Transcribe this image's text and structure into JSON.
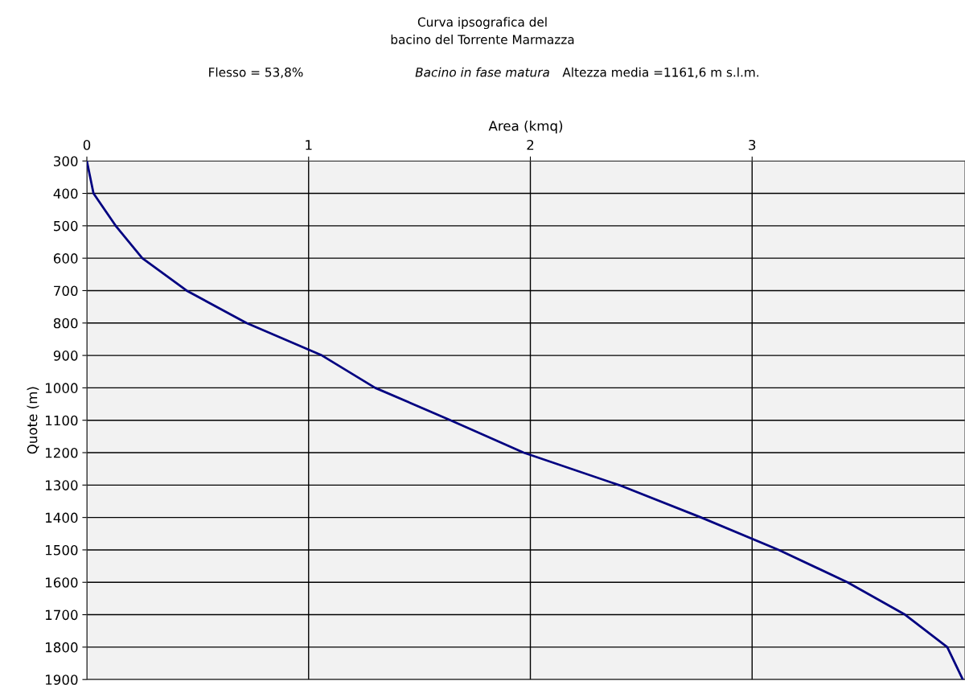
{
  "chart_data": {
    "type": "line",
    "title": "Curva ipsografica del\nbacino del Torrente Marmazza",
    "annotations": [
      "Flesso = 53,8%",
      "Bacino in fase matura",
      "Altezza media =1161,6 m s.l.m."
    ],
    "xlabel": "Area (kmq)",
    "ylabel": "Quote (m)",
    "series": [
      {
        "color": "#000080",
        "x": [
          0,
          0.03,
          0.13,
          0.25,
          0.45,
          0.72,
          1.06,
          1.3,
          1.64,
          1.97,
          2.4,
          2.77,
          3.12,
          3.43,
          3.69,
          3.88,
          3.95
        ],
        "values": [
          300,
          400,
          500,
          600,
          700,
          800,
          900,
          1000,
          1100,
          1200,
          1300,
          1400,
          1500,
          1600,
          1700,
          1800,
          1900
        ]
      }
    ],
    "xlim": [
      0,
      3.96
    ],
    "xticks": [
      0,
      1,
      2,
      3
    ],
    "ylim": [
      1900,
      300
    ],
    "yticks": [
      300,
      400,
      500,
      600,
      700,
      800,
      900,
      1000,
      1100,
      1200,
      1300,
      1400,
      1500,
      1600,
      1700,
      1800,
      1900
    ],
    "grid": true,
    "marker": "none",
    "line_style": "solid",
    "legend": false
  }
}
